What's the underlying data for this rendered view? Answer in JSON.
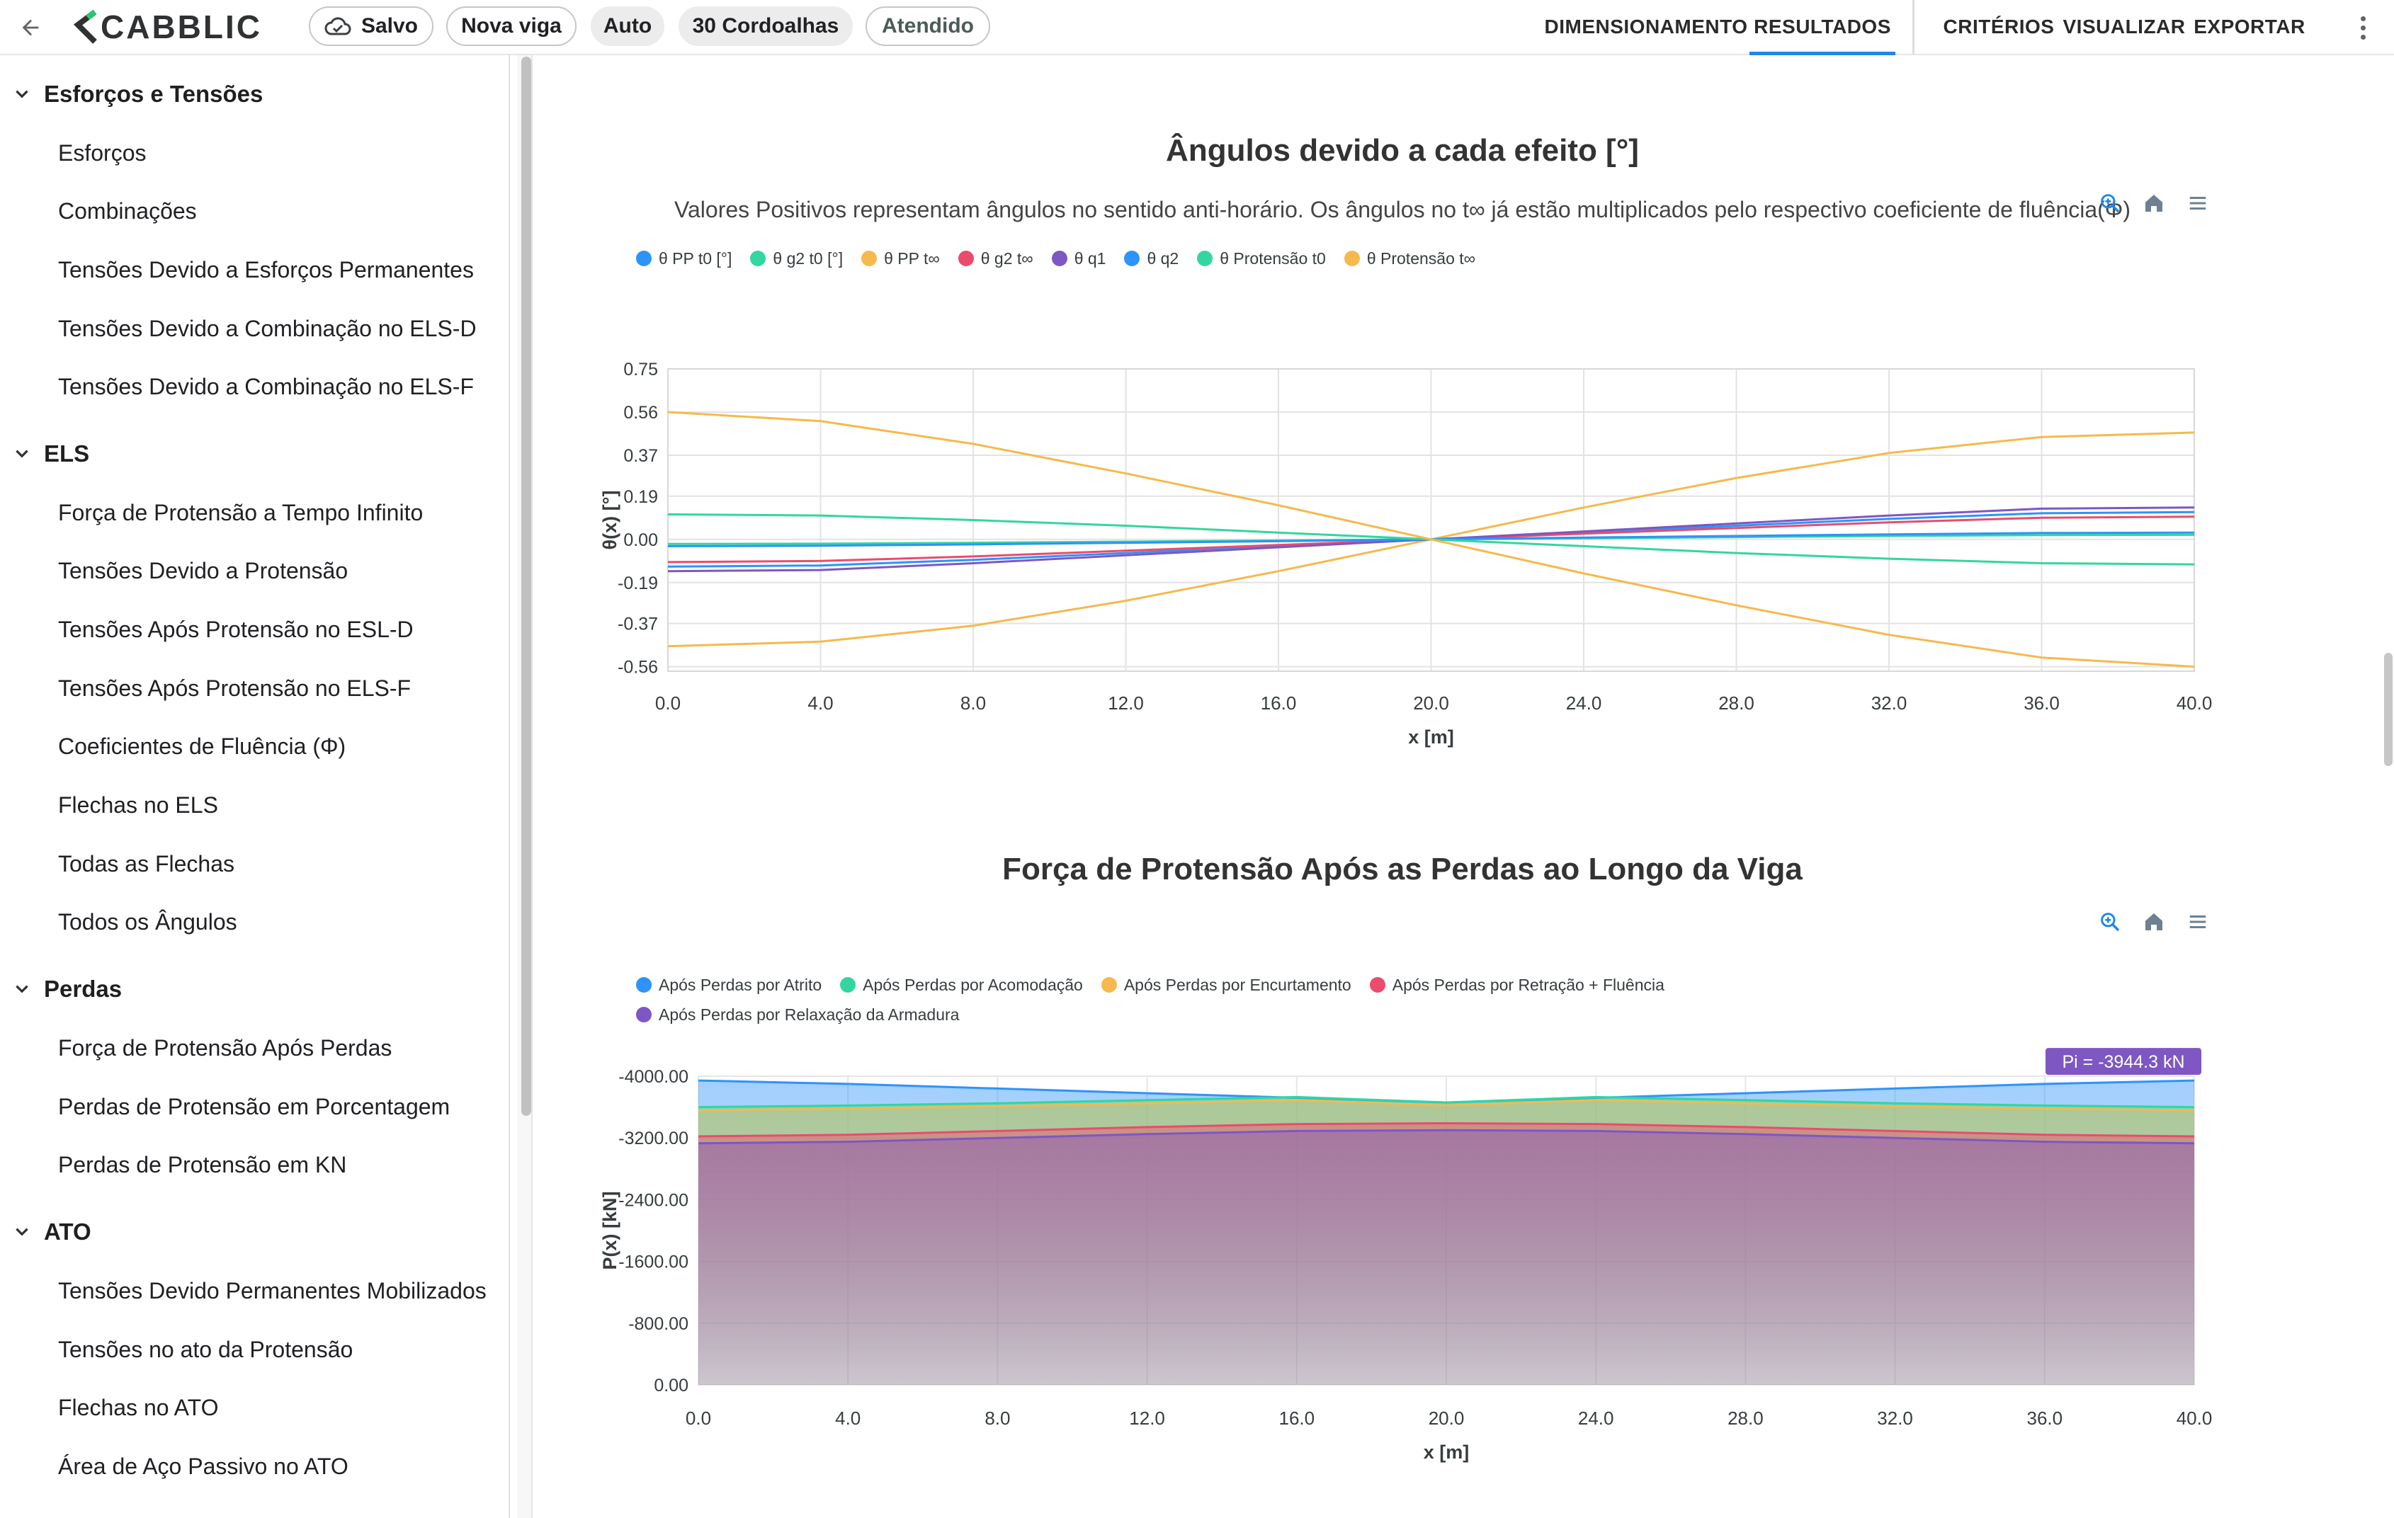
{
  "app": {
    "brand": "CABBLIC"
  },
  "topbar": {
    "chips": [
      {
        "label": "Salvo",
        "style": "outline",
        "icon": "cloud-check-icon"
      },
      {
        "label": "Nova viga",
        "style": "outline"
      },
      {
        "label": "Auto",
        "style": "filled"
      },
      {
        "label": "30 Cordoalhas",
        "style": "filled"
      },
      {
        "label": "Atendido",
        "style": "outline-muted"
      }
    ],
    "nav": [
      {
        "label": "DIMENSIONAMENTO",
        "active": false
      },
      {
        "label": "RESULTADOS",
        "active": true
      },
      {
        "label": "CRITÉRIOS",
        "active": false
      },
      {
        "label": "VISUALIZAR",
        "active": false
      },
      {
        "label": "EXPORTAR",
        "active": false
      }
    ]
  },
  "sidebar": {
    "sections": [
      {
        "title": "Esforços e Tensões",
        "items": [
          "Esforços",
          "Combinações",
          "Tensões Devido a Esforços Permanentes",
          "Tensões Devido a Combinação no ELS-D",
          "Tensões Devido a Combinação no ELS-F"
        ]
      },
      {
        "title": "ELS",
        "items": [
          "Força de Protensão a Tempo Infinito",
          "Tensões Devido a Protensão",
          "Tensões Após Protensão no ESL-D",
          "Tensões Após Protensão no ELS-F",
          "Coeficientes de Fluência (Φ)",
          "Flechas no ELS",
          "Todas as Flechas",
          "Todos os Ângulos"
        ]
      },
      {
        "title": "Perdas",
        "items": [
          "Força de Protensão Após Perdas",
          "Perdas de Protensão em Porcentagem",
          "Perdas de Protensão em KN"
        ]
      },
      {
        "title": "ATO",
        "items": [
          "Tensões Devido Permanentes Mobilizados",
          "Tensões no ato da Protensão",
          "Flechas no ATO",
          "Área de Aço Passivo no ATO"
        ]
      }
    ]
  },
  "charts": {
    "angles": {
      "title": "Ângulos devido a cada efeito [°]",
      "subtitle": "Valores Positivos representam ângulos no sentido anti-horário. Os ângulos no t∞ já estão multiplicados pelo respectivo coeficiente de fluência(Φ)"
    },
    "force": {
      "title": "Força de Protensão Após as Perdas ao Longo da Viga"
    }
  },
  "chart_data": [
    {
      "type": "line",
      "title": "Ângulos devido a cada efeito [°]",
      "xlabel": "x [m]",
      "ylabel": "θ(x) [°]",
      "x": [
        0,
        4,
        8,
        12,
        16,
        20,
        24,
        28,
        32,
        36,
        40
      ],
      "xticks": [
        "0.0",
        "4.0",
        "8.0",
        "12.0",
        "16.0",
        "20.0",
        "24.0",
        "28.0",
        "32.0",
        "36.0",
        "40.0"
      ],
      "yticks": [
        "0.75",
        "0.56",
        "0.37",
        "0.19",
        "0.00",
        "-0.19",
        "-0.37",
        "-0.56"
      ],
      "ylim": [
        -0.58,
        0.75
      ],
      "grid": true,
      "legend_position": "top-left",
      "series": [
        {
          "name": "θ PP t0 [°]",
          "color": "#2e93fa",
          "values": [
            -0.12,
            -0.115,
            -0.09,
            -0.06,
            -0.03,
            0,
            0.03,
            0.06,
            0.09,
            0.115,
            0.12
          ]
        },
        {
          "name": "θ g2 t0 [°]",
          "color": "#33d69f",
          "values": [
            -0.02,
            -0.019,
            -0.015,
            -0.01,
            -0.005,
            0,
            0.005,
            0.01,
            0.015,
            0.019,
            0.02
          ]
        },
        {
          "name": "θ PP t∞",
          "color": "#f6b94d",
          "values": [
            -0.47,
            -0.45,
            -0.38,
            -0.27,
            -0.14,
            0,
            0.14,
            0.27,
            0.38,
            0.45,
            0.47
          ]
        },
        {
          "name": "θ g2 t∞",
          "color": "#ea4c6b",
          "values": [
            -0.1,
            -0.095,
            -0.075,
            -0.05,
            -0.025,
            0,
            0.025,
            0.05,
            0.075,
            0.095,
            0.1
          ]
        },
        {
          "name": "θ q1",
          "color": "#7e57c2",
          "values": [
            -0.14,
            -0.135,
            -0.105,
            -0.07,
            -0.035,
            0,
            0.035,
            0.07,
            0.105,
            0.135,
            0.14
          ]
        },
        {
          "name": "θ q2",
          "color": "#2e93fa",
          "values": [
            -0.03,
            -0.028,
            -0.022,
            -0.015,
            -0.008,
            0,
            0.008,
            0.015,
            0.022,
            0.028,
            0.03
          ]
        },
        {
          "name": "θ Protensão t0",
          "color": "#33d69f",
          "values": [
            0.11,
            0.105,
            0.085,
            0.06,
            0.03,
            0,
            -0.03,
            -0.06,
            -0.085,
            -0.105,
            -0.11
          ]
        },
        {
          "name": "θ Protensão t∞",
          "color": "#f6b94d",
          "values": [
            0.56,
            0.52,
            0.42,
            0.29,
            0.15,
            0,
            -0.15,
            -0.29,
            -0.42,
            -0.52,
            -0.56
          ]
        }
      ]
    },
    {
      "type": "area",
      "title": "Força de Protensão Após as Perdas ao Longo da Viga",
      "xlabel": "x [m]",
      "ylabel": "P(x) [kN]",
      "x": [
        0,
        4,
        8,
        12,
        16,
        20,
        24,
        28,
        32,
        36,
        40
      ],
      "xticks": [
        "0.0",
        "4.0",
        "8.0",
        "12.0",
        "16.0",
        "20.0",
        "24.0",
        "28.0",
        "32.0",
        "36.0",
        "40.0"
      ],
      "yticks": [
        "-4000.00",
        "-3200.00",
        "-2400.00",
        "-1600.00",
        "-800.00",
        "0.00"
      ],
      "ylim": [
        -4000,
        0
      ],
      "grid": true,
      "legend_position": "top-left",
      "annotation": "Pi = -3944.3 kN",
      "series": [
        {
          "name": "Após Perdas por Atrito",
          "color": "#2e93fa",
          "values": [
            -3944.3,
            -3900,
            -3840,
            -3780,
            -3720,
            -3660,
            -3720,
            -3780,
            -3840,
            -3900,
            -3944.3
          ]
        },
        {
          "name": "Após Perdas por Acomodação",
          "color": "#33d69f",
          "values": [
            -3600,
            -3620,
            -3650,
            -3690,
            -3730,
            -3660,
            -3730,
            -3690,
            -3650,
            -3620,
            -3600
          ]
        },
        {
          "name": "Após Perdas por Encurtamento",
          "color": "#f6b94d",
          "values": [
            -3560,
            -3580,
            -3610,
            -3650,
            -3690,
            -3620,
            -3690,
            -3650,
            -3610,
            -3580,
            -3560
          ]
        },
        {
          "name": "Após Perdas por Retração + Fluência",
          "color": "#ea4c6b",
          "values": [
            -3220,
            -3240,
            -3290,
            -3340,
            -3380,
            -3390,
            -3380,
            -3340,
            -3290,
            -3240,
            -3220
          ]
        },
        {
          "name": "Após Perdas por Relaxação da Armadura",
          "color": "#7e57c2",
          "values": [
            -3130,
            -3150,
            -3200,
            -3250,
            -3290,
            -3300,
            -3290,
            -3250,
            -3200,
            -3150,
            -3130
          ]
        }
      ]
    }
  ]
}
